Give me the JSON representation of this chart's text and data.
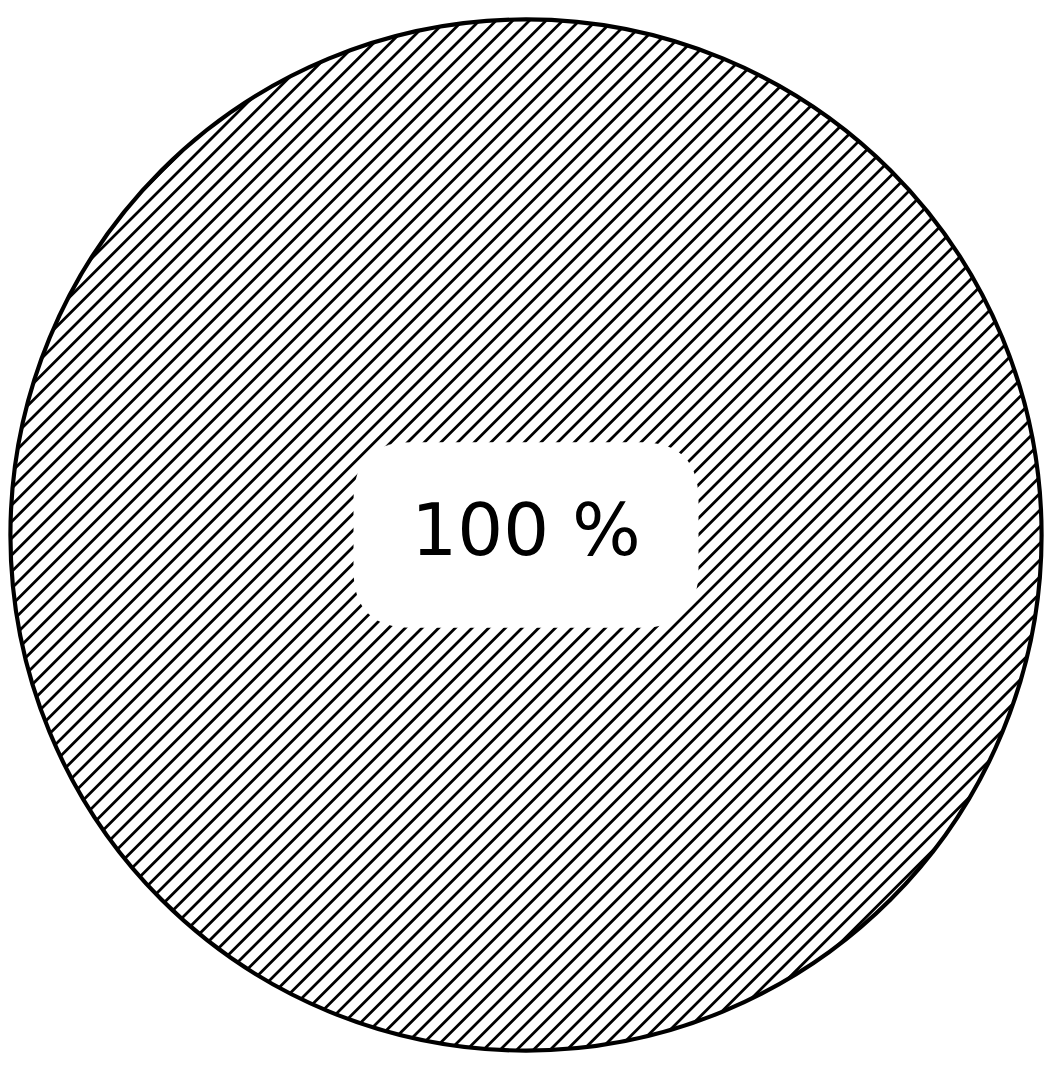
{
  "chart_data": {
    "type": "pie",
    "categories": [
      null
    ],
    "values": [
      100
    ],
    "colors": [
      "#ffffff"
    ],
    "value_labels": [
      "100 %"
    ]
  }
}
